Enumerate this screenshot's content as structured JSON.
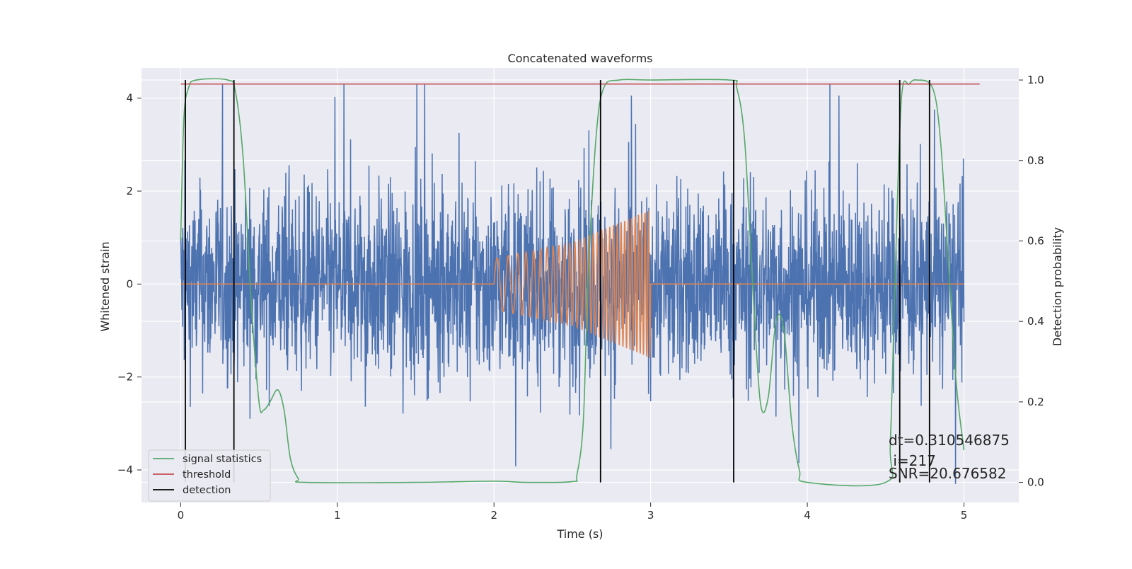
{
  "chart_data": {
    "type": "line",
    "title": "Concatenated waveforms",
    "xlabel": "Time (s)",
    "ylabel_left": "Whitened strain",
    "ylabel_right": "Detection probability",
    "xlim": [
      -0.25,
      5.35
    ],
    "ylim_left": [
      -4.7,
      4.65
    ],
    "ylim_right": [
      -0.05,
      1.03
    ],
    "xticks": [
      0,
      1,
      2,
      3,
      4,
      5
    ],
    "xtick_labels": [
      "0",
      "1",
      "2",
      "3",
      "4",
      "5"
    ],
    "yticks_left": [
      -4,
      -2,
      0,
      2,
      4
    ],
    "ytick_labels_left": [
      "−4",
      "−2",
      "0",
      "2",
      "4"
    ],
    "yticks_right": [
      0.0,
      0.2,
      0.4,
      0.6,
      0.8,
      1.0
    ],
    "ytick_labels_right": [
      "0.0",
      "0.2",
      "0.4",
      "0.6",
      "0.8",
      "1.0"
    ],
    "grid": true,
    "legend_position": "bottom-left",
    "legend": [
      {
        "label": "signal statistics",
        "color": "#55a868"
      },
      {
        "label": "threshold",
        "color": "#c44e52"
      },
      {
        "label": "detection",
        "color": "#000000"
      }
    ],
    "strain_noise": {
      "color": "#4c72b0",
      "x_start": 0.0,
      "x_end": 5.0,
      "typical_amplitude": 1.0,
      "max_abs": 4.3
    },
    "injected_signal": {
      "color": "#dd8452",
      "x": [
        0.0,
        2.0,
        2.0,
        2.5,
        3.0,
        3.0,
        5.0
      ],
      "envelope": [
        0.0,
        0.0,
        0.55,
        0.9,
        1.6,
        0.0,
        0.0
      ],
      "note_frequency_start_hz": 12,
      "note_frequency_end_hz": 50
    },
    "signal_statistics": {
      "color": "#55a868",
      "x": [
        0.0,
        0.02,
        0.05,
        0.1,
        0.3,
        0.35,
        0.4,
        0.45,
        0.5,
        0.53,
        0.57,
        0.62,
        0.66,
        0.7,
        0.75,
        0.8,
        1.5,
        2.0,
        2.2,
        2.5,
        2.53,
        2.57,
        2.6,
        2.65,
        2.7,
        2.8,
        3.0,
        3.5,
        3.55,
        3.6,
        3.65,
        3.7,
        3.75,
        3.8,
        3.85,
        3.9,
        3.95,
        4.0,
        4.5,
        4.53,
        4.56,
        4.6,
        4.65,
        4.7,
        4.8,
        4.85,
        4.9,
        4.95,
        5.0
      ],
      "y": [
        0.6,
        0.9,
        0.98,
        1.0,
        1.0,
        0.97,
        0.8,
        0.45,
        0.2,
        0.18,
        0.2,
        0.23,
        0.18,
        0.06,
        0.01,
        0.0,
        0.0,
        0.003,
        0.0,
        0.002,
        0.02,
        0.15,
        0.5,
        0.85,
        0.98,
        1.0,
        1.0,
        1.0,
        0.98,
        0.85,
        0.5,
        0.2,
        0.21,
        0.4,
        0.38,
        0.15,
        0.03,
        0.0,
        0.0,
        0.1,
        0.5,
        0.95,
        0.99,
        1.0,
        0.98,
        0.85,
        0.55,
        0.25,
        0.08
      ]
    },
    "threshold": {
      "y_prob": 0.99,
      "x_range": [
        0.0,
        5.1
      ],
      "color": "#c44e52"
    },
    "detections": {
      "x": [
        0.03,
        0.34,
        2.68,
        3.53,
        4.59,
        4.78
      ],
      "color": "#000000"
    },
    "annotations": [
      "dt=0.310546875",
      " i=217",
      "SNR=20.676582"
    ]
  }
}
